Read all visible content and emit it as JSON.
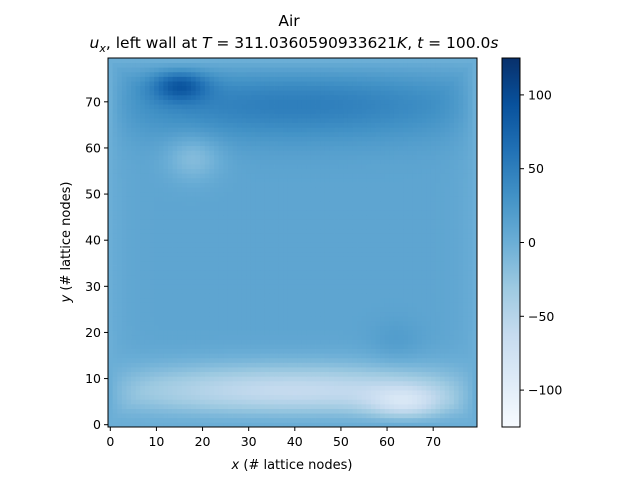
{
  "chart_data": {
    "type": "heatmap",
    "title": "Air",
    "subtitle": "u_x, left wall at T = 311.0360590933621K, t = 100.0s",
    "subtitle_parts": {
      "var": "u",
      "var_sub": "x",
      "mid": ", left wall at ",
      "T_sym": "T",
      "T_val": " = 311.0360590933621",
      "T_unit": "K",
      "t_prefix": ", ",
      "t_sym": "t",
      "t_val": " = 100.0",
      "t_unit": "s"
    },
    "xlabel_sym": "x",
    "xlabel": " (# lattice nodes)",
    "ylabel_sym": "y",
    "ylabel": " (# lattice nodes)",
    "xlim": [
      -0.5,
      79.5
    ],
    "ylim": [
      -0.5,
      79.5
    ],
    "x_ticks": [
      0,
      10,
      20,
      30,
      40,
      50,
      60,
      70
    ],
    "y_ticks": [
      0,
      10,
      20,
      30,
      40,
      50,
      60,
      70
    ],
    "grid_size": [
      80,
      80
    ],
    "colormap": "Blues",
    "color_range": [
      -125,
      125
    ],
    "colorbar_ticks": [
      100,
      50,
      0,
      -50,
      -100
    ],
    "colorbar_tick_labels": [
      "100",
      "50",
      "0",
      "−50",
      "−100"
    ],
    "features": [
      {
        "label": "strong positive flow near top-left",
        "x": 15,
        "y": 74,
        "value": 120
      },
      {
        "label": "upper band",
        "x": 40,
        "y": 70,
        "value": 50
      },
      {
        "label": "weaker patch",
        "x": 18,
        "y": 58,
        "value": 20
      },
      {
        "label": "interior",
        "x": 40,
        "y": 40,
        "value": 10
      },
      {
        "label": "local patch",
        "x": 62,
        "y": 18,
        "value": 15
      },
      {
        "label": "lower band",
        "x": 40,
        "y": 7,
        "value": -70
      },
      {
        "label": "strong negative flow near bottom-right",
        "x": 64,
        "y": 4,
        "value": -125
      },
      {
        "label": "walls",
        "value": 0
      }
    ]
  }
}
